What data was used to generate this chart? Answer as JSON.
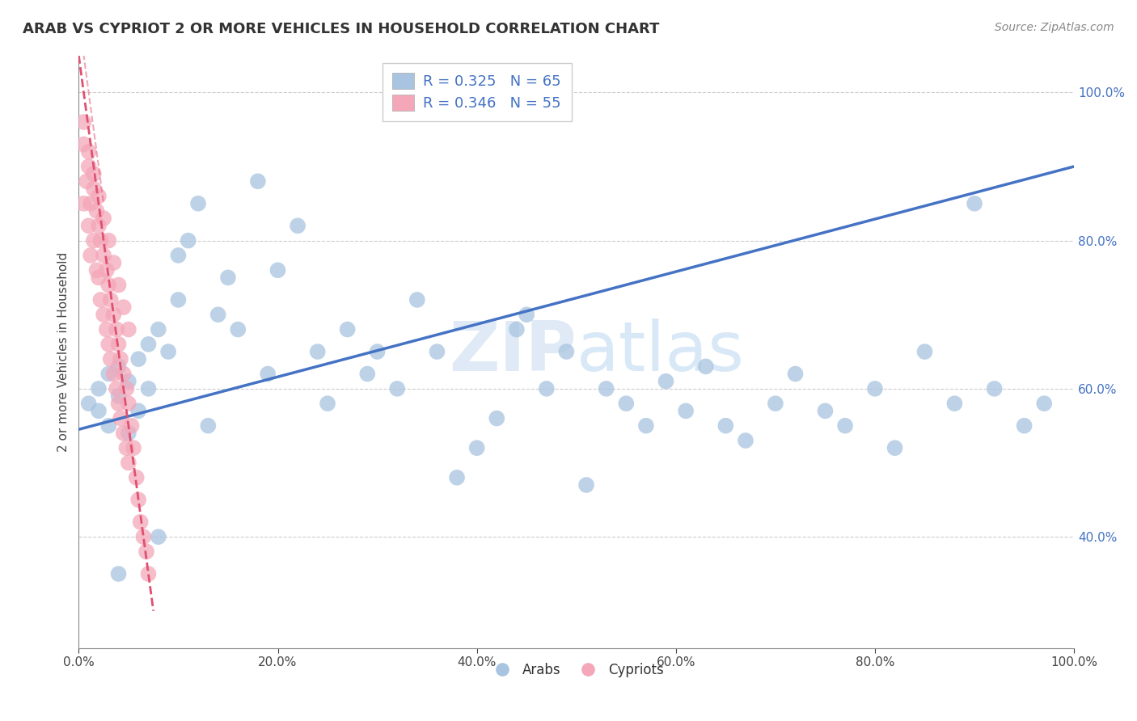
{
  "title": "ARAB VS CYPRIOT 2 OR MORE VEHICLES IN HOUSEHOLD CORRELATION CHART",
  "source_text": "Source: ZipAtlas.com",
  "ylabel": "2 or more Vehicles in Household",
  "xlim": [
    0,
    1.0
  ],
  "ylim": [
    0.25,
    1.05
  ],
  "arab_color": "#a8c4e0",
  "cypriot_color": "#f4a7b9",
  "arab_line_color": "#4472c4",
  "cypriot_line_color": "#e05070",
  "R_arab": 0.325,
  "N_arab": 65,
  "R_cypriot": 0.346,
  "N_cypriot": 55,
  "legend_text_color": "#4472c4",
  "watermark": "ZIPatlas",
  "arab_x": [
    0.01,
    0.02,
    0.02,
    0.03,
    0.03,
    0.04,
    0.04,
    0.05,
    0.05,
    0.06,
    0.06,
    0.07,
    0.07,
    0.08,
    0.09,
    0.1,
    0.1,
    0.11,
    0.12,
    0.13,
    0.14,
    0.15,
    0.16,
    0.18,
    0.19,
    0.2,
    0.22,
    0.24,
    0.25,
    0.27,
    0.29,
    0.3,
    0.32,
    0.34,
    0.36,
    0.38,
    0.4,
    0.42,
    0.44,
    0.45,
    0.47,
    0.49,
    0.51,
    0.53,
    0.55,
    0.57,
    0.59,
    0.61,
    0.63,
    0.65,
    0.67,
    0.7,
    0.72,
    0.75,
    0.77,
    0.8,
    0.82,
    0.85,
    0.88,
    0.9,
    0.92,
    0.95,
    0.97,
    0.04,
    0.08
  ],
  "arab_y": [
    0.58,
    0.57,
    0.6,
    0.62,
    0.55,
    0.59,
    0.63,
    0.54,
    0.61,
    0.57,
    0.64,
    0.66,
    0.6,
    0.68,
    0.65,
    0.72,
    0.78,
    0.8,
    0.85,
    0.55,
    0.7,
    0.75,
    0.68,
    0.88,
    0.62,
    0.76,
    0.82,
    0.65,
    0.58,
    0.68,
    0.62,
    0.65,
    0.6,
    0.72,
    0.65,
    0.48,
    0.52,
    0.56,
    0.68,
    0.7,
    0.6,
    0.65,
    0.47,
    0.6,
    0.58,
    0.55,
    0.61,
    0.57,
    0.63,
    0.55,
    0.53,
    0.58,
    0.62,
    0.57,
    0.55,
    0.6,
    0.52,
    0.65,
    0.58,
    0.85,
    0.6,
    0.55,
    0.58,
    0.35,
    0.4
  ],
  "cypriot_x": [
    0.005,
    0.005,
    0.008,
    0.01,
    0.01,
    0.012,
    0.012,
    0.015,
    0.015,
    0.018,
    0.018,
    0.02,
    0.02,
    0.022,
    0.022,
    0.025,
    0.025,
    0.028,
    0.028,
    0.03,
    0.03,
    0.032,
    0.032,
    0.035,
    0.035,
    0.038,
    0.038,
    0.04,
    0.04,
    0.042,
    0.042,
    0.045,
    0.045,
    0.048,
    0.048,
    0.05,
    0.05,
    0.053,
    0.055,
    0.058,
    0.06,
    0.062,
    0.065,
    0.068,
    0.07,
    0.005,
    0.01,
    0.015,
    0.02,
    0.025,
    0.03,
    0.035,
    0.04,
    0.045,
    0.05
  ],
  "cypriot_y": [
    0.93,
    0.85,
    0.88,
    0.9,
    0.82,
    0.85,
    0.78,
    0.87,
    0.8,
    0.84,
    0.76,
    0.82,
    0.75,
    0.8,
    0.72,
    0.78,
    0.7,
    0.76,
    0.68,
    0.74,
    0.66,
    0.72,
    0.64,
    0.7,
    0.62,
    0.68,
    0.6,
    0.66,
    0.58,
    0.64,
    0.56,
    0.62,
    0.54,
    0.6,
    0.52,
    0.58,
    0.5,
    0.55,
    0.52,
    0.48,
    0.45,
    0.42,
    0.4,
    0.38,
    0.35,
    0.96,
    0.92,
    0.89,
    0.86,
    0.83,
    0.8,
    0.77,
    0.74,
    0.71,
    0.68
  ]
}
